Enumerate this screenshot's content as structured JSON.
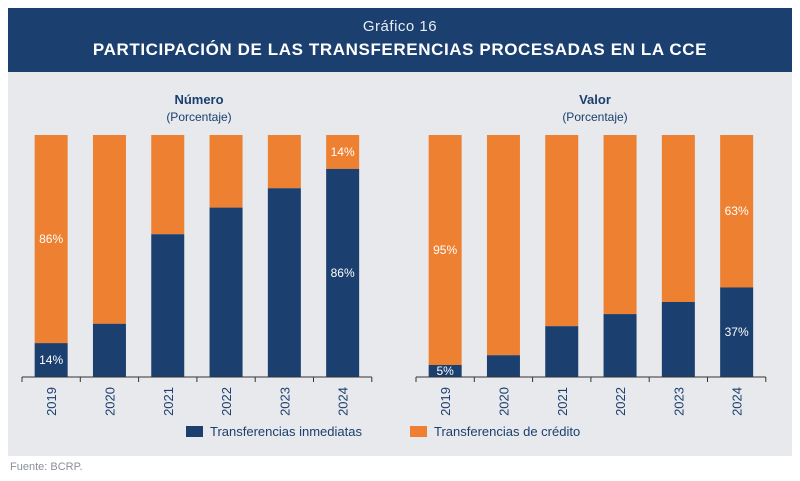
{
  "header": {
    "kicker": "Gráfico 16",
    "title": "PARTICIPACIÓN DE LAS TRANSFERENCIAS PROCESADAS EN LA CCE"
  },
  "source": "Fuente: BCRP.",
  "colors": {
    "inmediatas": "#1b3f6e",
    "credito": "#ee8031",
    "header_bg": "#1b3f6e",
    "panel_bg": "#e7e9ec"
  },
  "legend": [
    {
      "name": "Transferencias inmediatas",
      "color": "#1b3f6e"
    },
    {
      "name": "Transferencias de crédito",
      "color": "#ee8031"
    }
  ],
  "chart_data": [
    {
      "type": "bar",
      "stacked": true,
      "title": "Número",
      "subtitle": "(Porcentaje)",
      "categories": [
        "2019",
        "2020",
        "2021",
        "2022",
        "2023",
        "2024"
      ],
      "ylim": [
        0,
        100
      ],
      "series": [
        {
          "name": "Transferencias inmediatas",
          "values": [
            14,
            22,
            59,
            70,
            78,
            86
          ],
          "labels": [
            "14%",
            "",
            "",
            "",
            "",
            "86%"
          ]
        },
        {
          "name": "Transferencias de crédito",
          "values": [
            86,
            78,
            41,
            30,
            22,
            14
          ],
          "labels": [
            "86%",
            "",
            "",
            "",
            "",
            "14%"
          ]
        }
      ]
    },
    {
      "type": "bar",
      "stacked": true,
      "title": "Valor",
      "subtitle": "(Porcentaje)",
      "categories": [
        "2019",
        "2020",
        "2021",
        "2022",
        "2023",
        "2024"
      ],
      "ylim": [
        0,
        100
      ],
      "series": [
        {
          "name": "Transferencias inmediatas",
          "values": [
            5,
            9,
            21,
            26,
            31,
            37
          ],
          "labels": [
            "5%",
            "",
            "",
            "",
            "",
            "37%"
          ]
        },
        {
          "name": "Transferencias de crédito",
          "values": [
            95,
            91,
            79,
            74,
            69,
            63
          ],
          "labels": [
            "95%",
            "",
            "",
            "",
            "",
            "63%"
          ]
        }
      ]
    }
  ]
}
